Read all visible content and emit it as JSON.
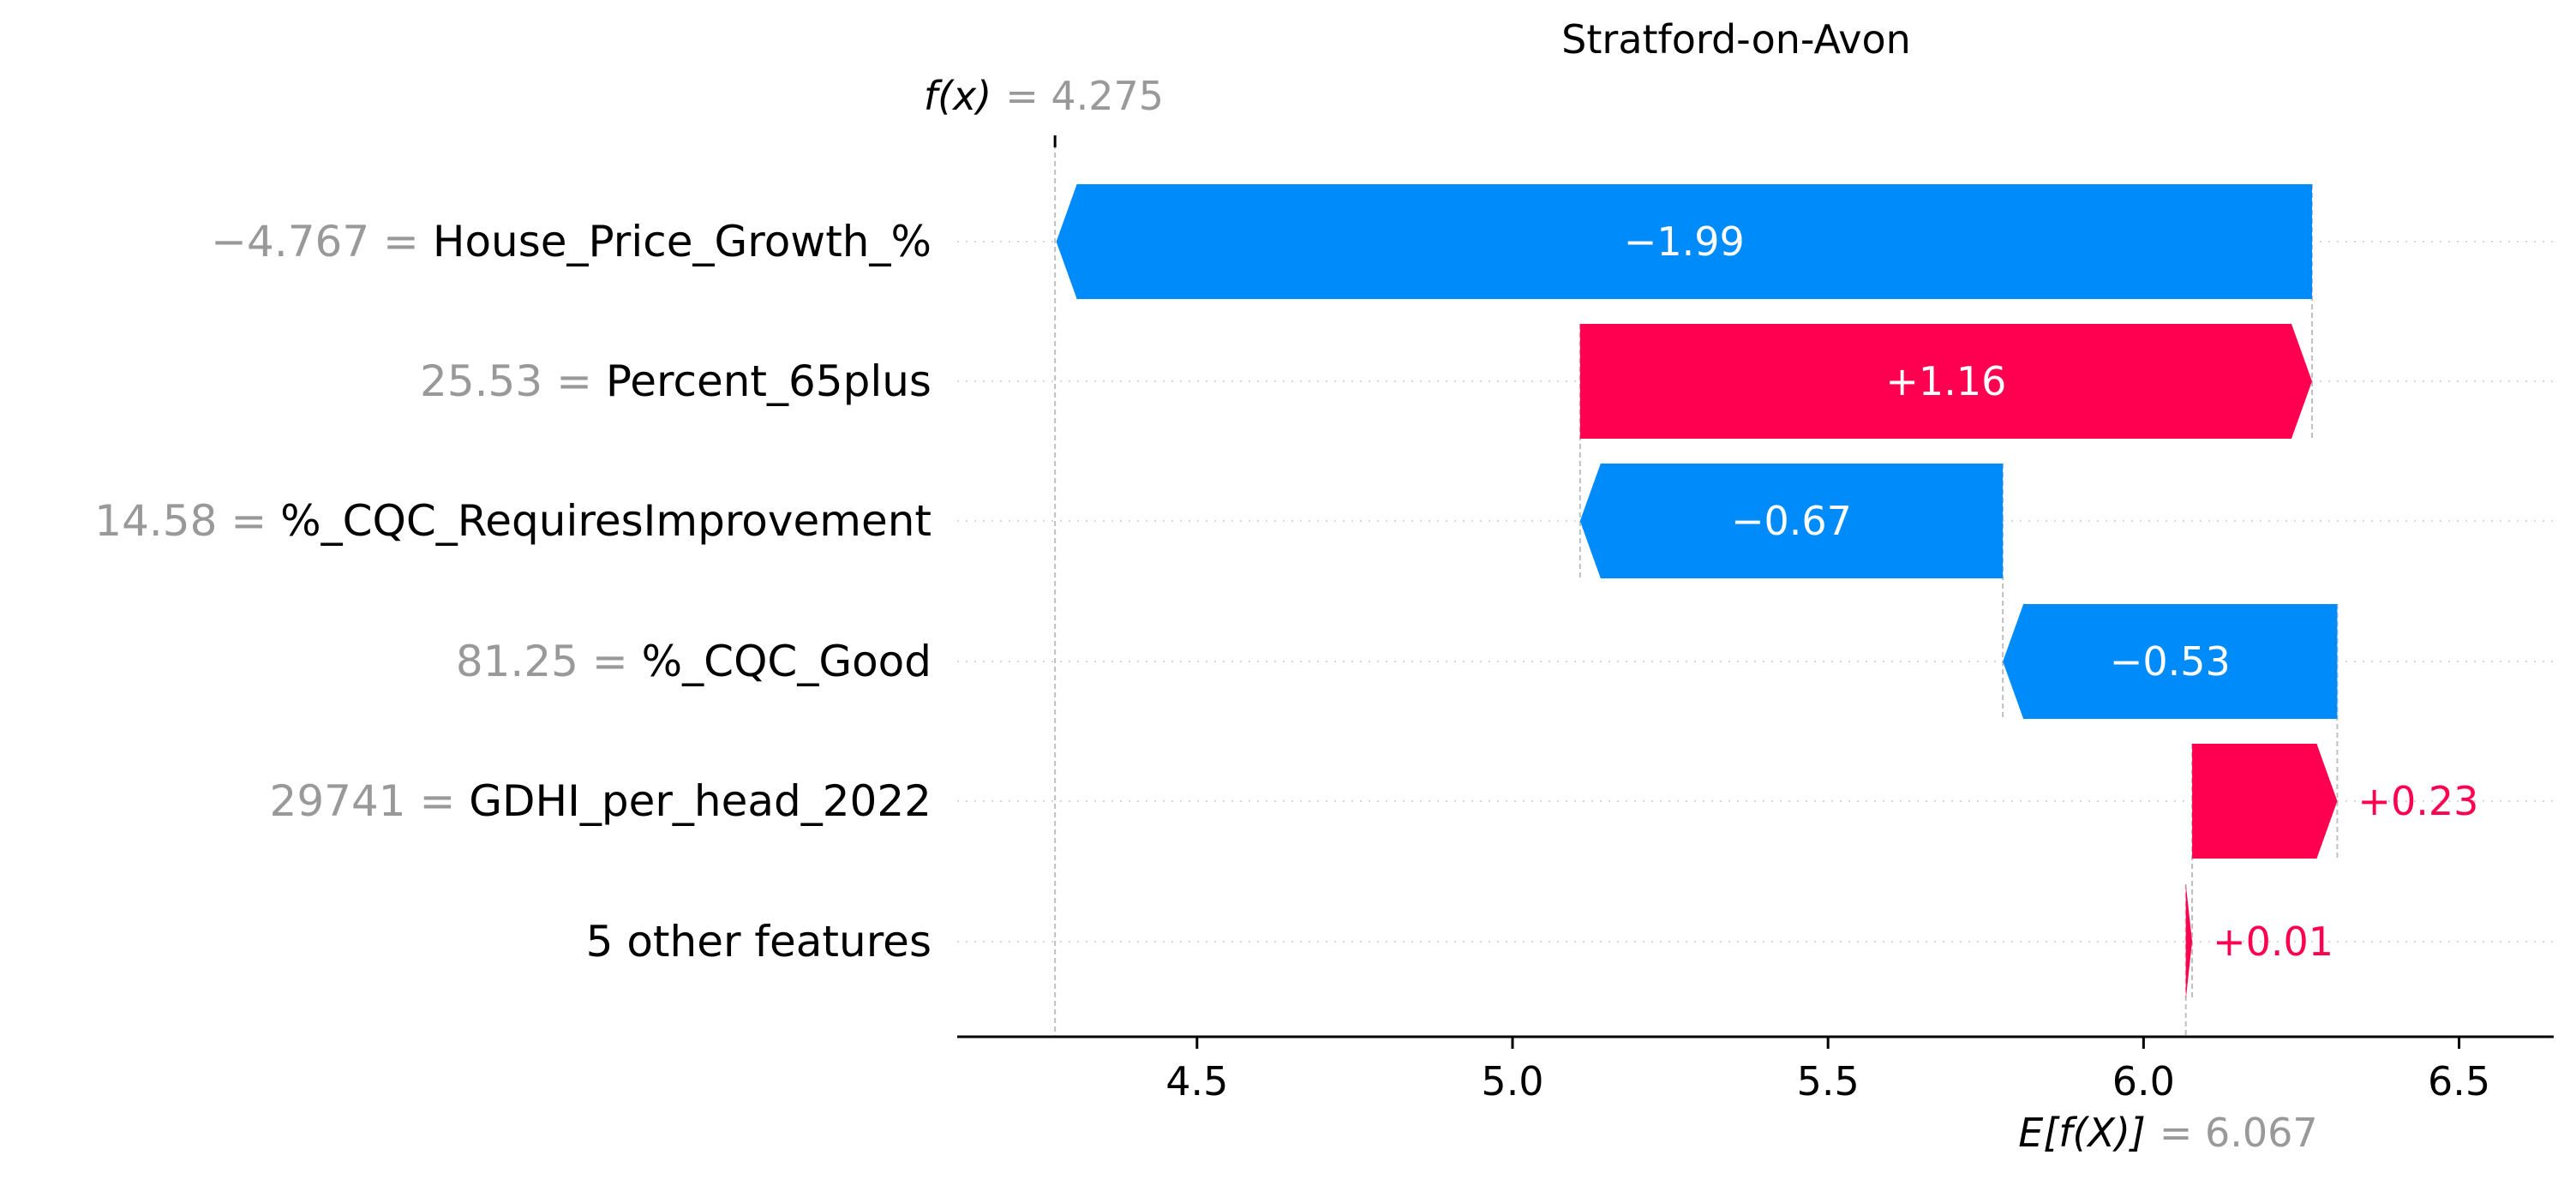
{
  "chart_data": {
    "type": "waterfall",
    "title": "Stratford-on-Avon",
    "fx_label": "f(x)",
    "fx_value": "= 4.275",
    "fx": 4.275,
    "base_label": "E[f(X)]",
    "base_value": "= 6.067",
    "base": 6.067,
    "xlim": [
      4.12,
      6.65
    ],
    "xticks": [
      "4.5",
      "5.0",
      "5.5",
      "6.0",
      "6.5"
    ],
    "tick_values": [
      4.5,
      5.0,
      5.5,
      6.0,
      6.5
    ],
    "features": [
      {
        "value": "−4.767 =",
        "name": "House_Price_Growth_%",
        "contribution": -1.99,
        "label": "−1.99"
      },
      {
        "value": "25.53 =",
        "name": "Percent_65plus",
        "contribution": 1.16,
        "label": "+1.16"
      },
      {
        "value": "14.58 =",
        "name": "%_CQC_RequiresImprovement",
        "contribution": -0.67,
        "label": "−0.67"
      },
      {
        "value": "81.25 =",
        "name": "%_CQC_Good",
        "contribution": -0.53,
        "label": "−0.53"
      },
      {
        "value": "29741 =",
        "name": "GDHI_per_head_2022",
        "contribution": 0.23,
        "label": "+0.23"
      },
      {
        "value": "",
        "name": "5 other features",
        "contribution": 0.01,
        "label": "+0.01"
      }
    ],
    "colors": {
      "positive": "#ff0051",
      "negative": "#008bfb",
      "label_inside": "#ffffff"
    }
  }
}
